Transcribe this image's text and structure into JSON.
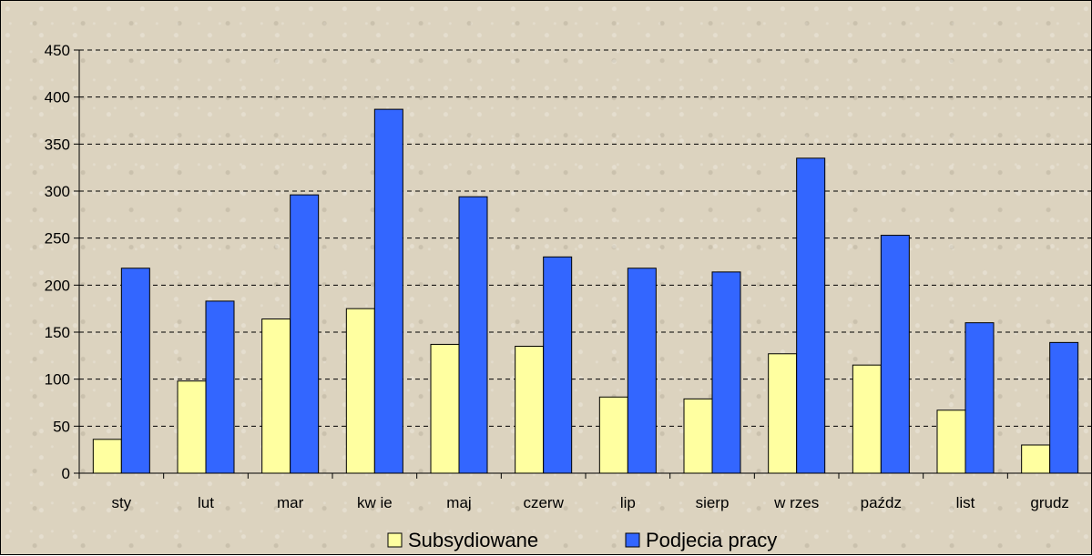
{
  "chart_data": {
    "type": "bar",
    "title": "",
    "xlabel": "",
    "ylabel": "",
    "categories": [
      "sty",
      "lut",
      "mar",
      "kw ie",
      "maj",
      "czerw",
      "lip",
      "sierp",
      "w rzes",
      "paźdz",
      "list",
      "grudz"
    ],
    "series": [
      {
        "name": "Subsydiowane",
        "color": "#ffffa0",
        "values": [
          36,
          98,
          164,
          175,
          137,
          135,
          81,
          79,
          127,
          115,
          67,
          30
        ]
      },
      {
        "name": "Podjecia pracy",
        "color": "#3366ff",
        "values": [
          218,
          183,
          296,
          387,
          294,
          230,
          218,
          214,
          335,
          253,
          160,
          139
        ]
      }
    ],
    "ylim": [
      0,
      450
    ],
    "yticks": [
      "0",
      "50",
      "100",
      "150",
      "200",
      "250",
      "300",
      "350",
      "400",
      "450"
    ],
    "grid": true,
    "legend": "bottom"
  }
}
